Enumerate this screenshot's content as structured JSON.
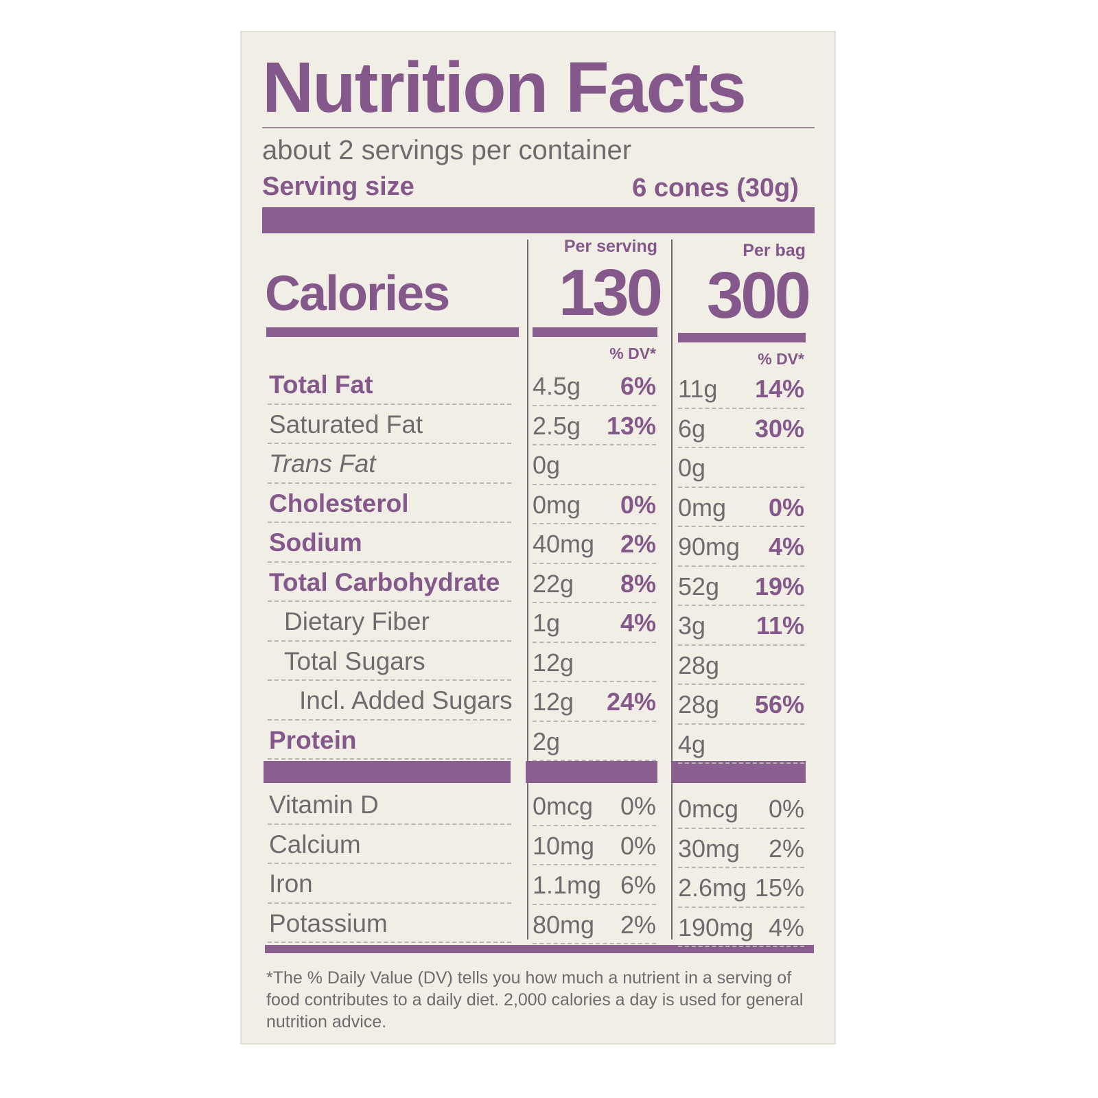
{
  "title": "Nutrition Facts",
  "servings": "about 2 servings per container",
  "serving_size": {
    "label": "Serving size",
    "value": "6 cones (30g)"
  },
  "calories_label": "Calories",
  "columns": [
    {
      "header": "Per serving",
      "calories": "130",
      "dv_header": "% DV*"
    },
    {
      "header": "Per bag",
      "calories": "300",
      "dv_header": "% DV*"
    }
  ],
  "rows": [
    {
      "name": "Total Fat",
      "style": "bold",
      "indent": 0,
      "values": [
        [
          "4.5g",
          "6%"
        ],
        [
          "11g",
          "14%"
        ]
      ]
    },
    {
      "name": "Saturated Fat",
      "style": "normal",
      "indent": 0,
      "values": [
        [
          "2.5g",
          "13%"
        ],
        [
          "6g",
          "30%"
        ]
      ]
    },
    {
      "name": "Trans Fat",
      "style": "italic",
      "indent": 0,
      "values": [
        [
          "0g",
          null
        ],
        [
          "0g",
          null
        ]
      ]
    },
    {
      "name": "Cholesterol",
      "style": "bold",
      "indent": 0,
      "values": [
        [
          "0mg",
          "0%"
        ],
        [
          "0mg",
          "0%"
        ]
      ]
    },
    {
      "name": "Sodium",
      "style": "bold",
      "indent": 0,
      "values": [
        [
          "40mg",
          "2%"
        ],
        [
          "90mg",
          "4%"
        ]
      ]
    },
    {
      "name": "Total Carbohydrate",
      "style": "bold",
      "indent": 0,
      "values": [
        [
          "22g",
          "8%"
        ],
        [
          "52g",
          "19%"
        ]
      ]
    },
    {
      "name": "Dietary Fiber",
      "style": "normal",
      "indent": 1,
      "values": [
        [
          "1g",
          "4%"
        ],
        [
          "3g",
          "11%"
        ]
      ]
    },
    {
      "name": "Total Sugars",
      "style": "normal",
      "indent": 1,
      "values": [
        [
          "12g",
          null
        ],
        [
          "28g",
          null
        ]
      ]
    },
    {
      "name": "Incl. Added Sugars",
      "style": "normal",
      "indent": 2,
      "values": [
        [
          "12g",
          "24%"
        ],
        [
          "28g",
          "56%"
        ]
      ]
    },
    {
      "name": "Protein",
      "style": "bold",
      "indent": 0,
      "values": [
        [
          "2g",
          null
        ],
        [
          "4g",
          null
        ]
      ]
    }
  ],
  "vitamins": [
    {
      "name": "Vitamin D",
      "values": [
        [
          "0mcg",
          "0%"
        ],
        [
          "0mcg",
          "0%"
        ]
      ]
    },
    {
      "name": "Calcium",
      "values": [
        [
          "10mg",
          "0%"
        ],
        [
          "30mg",
          "2%"
        ]
      ]
    },
    {
      "name": "Iron",
      "values": [
        [
          "1.1mg",
          "6%"
        ],
        [
          "2.6mg",
          "15%"
        ]
      ]
    },
    {
      "name": "Potassium",
      "values": [
        [
          "80mg",
          "2%"
        ],
        [
          "190mg",
          "4%"
        ]
      ]
    }
  ],
  "footnote": "*The % Daily Value (DV) tells you how much a nutrient in a serving of food contributes to a daily diet. 2,000 calories a day is used for general nutrition advice."
}
